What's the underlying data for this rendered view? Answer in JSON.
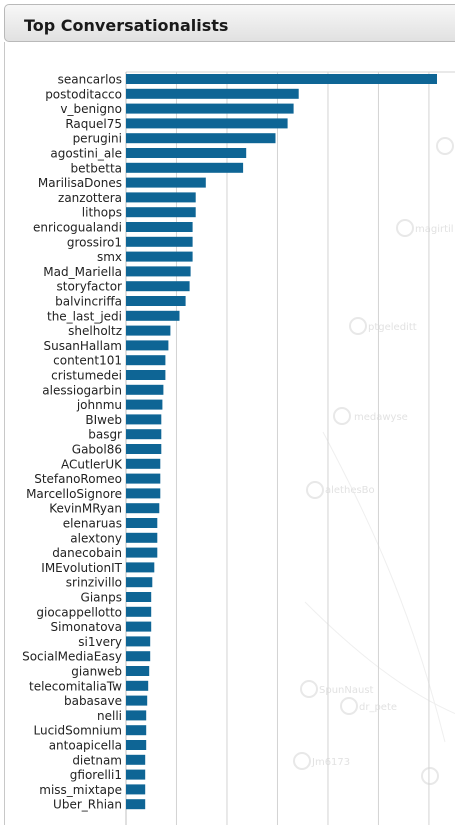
{
  "panel": {
    "title": "Top Conversationalists"
  },
  "background_graph": {
    "labels": [
      "magirtil",
      "ptgeleditt",
      "medawyse",
      "alethesBo",
      "SpunNaust",
      "dr_pete",
      "Jm6173"
    ]
  },
  "colors": {
    "bar": "#0e6595",
    "grid": "#d3d3d3",
    "header_top": "#f7f7f7",
    "header_bottom": "#e1e1e1"
  },
  "chart_data": {
    "type": "bar",
    "orientation": "horizontal",
    "title": "",
    "xlabel": "",
    "ylabel": "",
    "grid": true,
    "xlim": [
      0,
      310
    ],
    "xticks": [
      50,
      100,
      150,
      200,
      250,
      300
    ],
    "categories": [
      "seancarlos",
      "postoditacco",
      "v_benigno",
      "Raquel75",
      "perugini",
      "agostini_ale",
      "betbetta",
      "MarilisaDones",
      "zanzottera",
      "lithops",
      "enricogualandi",
      "grossiro1",
      "smx",
      "Mad_Mariella",
      "storyfactor",
      "balvincriffa",
      "the_last_jedi",
      "shelholtz",
      "SusanHallam",
      "content101",
      "cristumedei",
      "alessiogarbin",
      "johnmu",
      "BIweb",
      "basgr",
      "Gabol86",
      "ACutlerUK",
      "StefanoRomeo",
      "MarcelloSignore",
      "KevinMRyan",
      "elenaruas",
      "alextony",
      "danecobain",
      "IMEvolutionIT",
      "srinzivillo",
      "Gianps",
      "giocappellotto",
      "Simonatova",
      "si1very",
      "SocialMediaEasy",
      "gianweb",
      "telecomitaliaTw",
      "babasave",
      "nelli",
      "LucidSomnium",
      "antoapicella",
      "dietnam",
      "gfiorelli1",
      "miss_mixtape",
      "Uber_Rhian"
    ],
    "values": [
      308,
      171,
      166,
      160,
      148,
      119,
      116,
      79,
      69,
      69,
      66,
      66,
      66,
      64,
      63,
      59,
      53,
      44,
      42,
      39,
      39,
      37,
      36,
      35,
      35,
      35,
      34,
      34,
      34,
      33,
      31,
      31,
      31,
      28,
      26,
      25,
      25,
      25,
      24,
      24,
      23,
      22,
      21,
      20,
      20,
      20,
      19,
      19,
      19,
      19
    ]
  }
}
